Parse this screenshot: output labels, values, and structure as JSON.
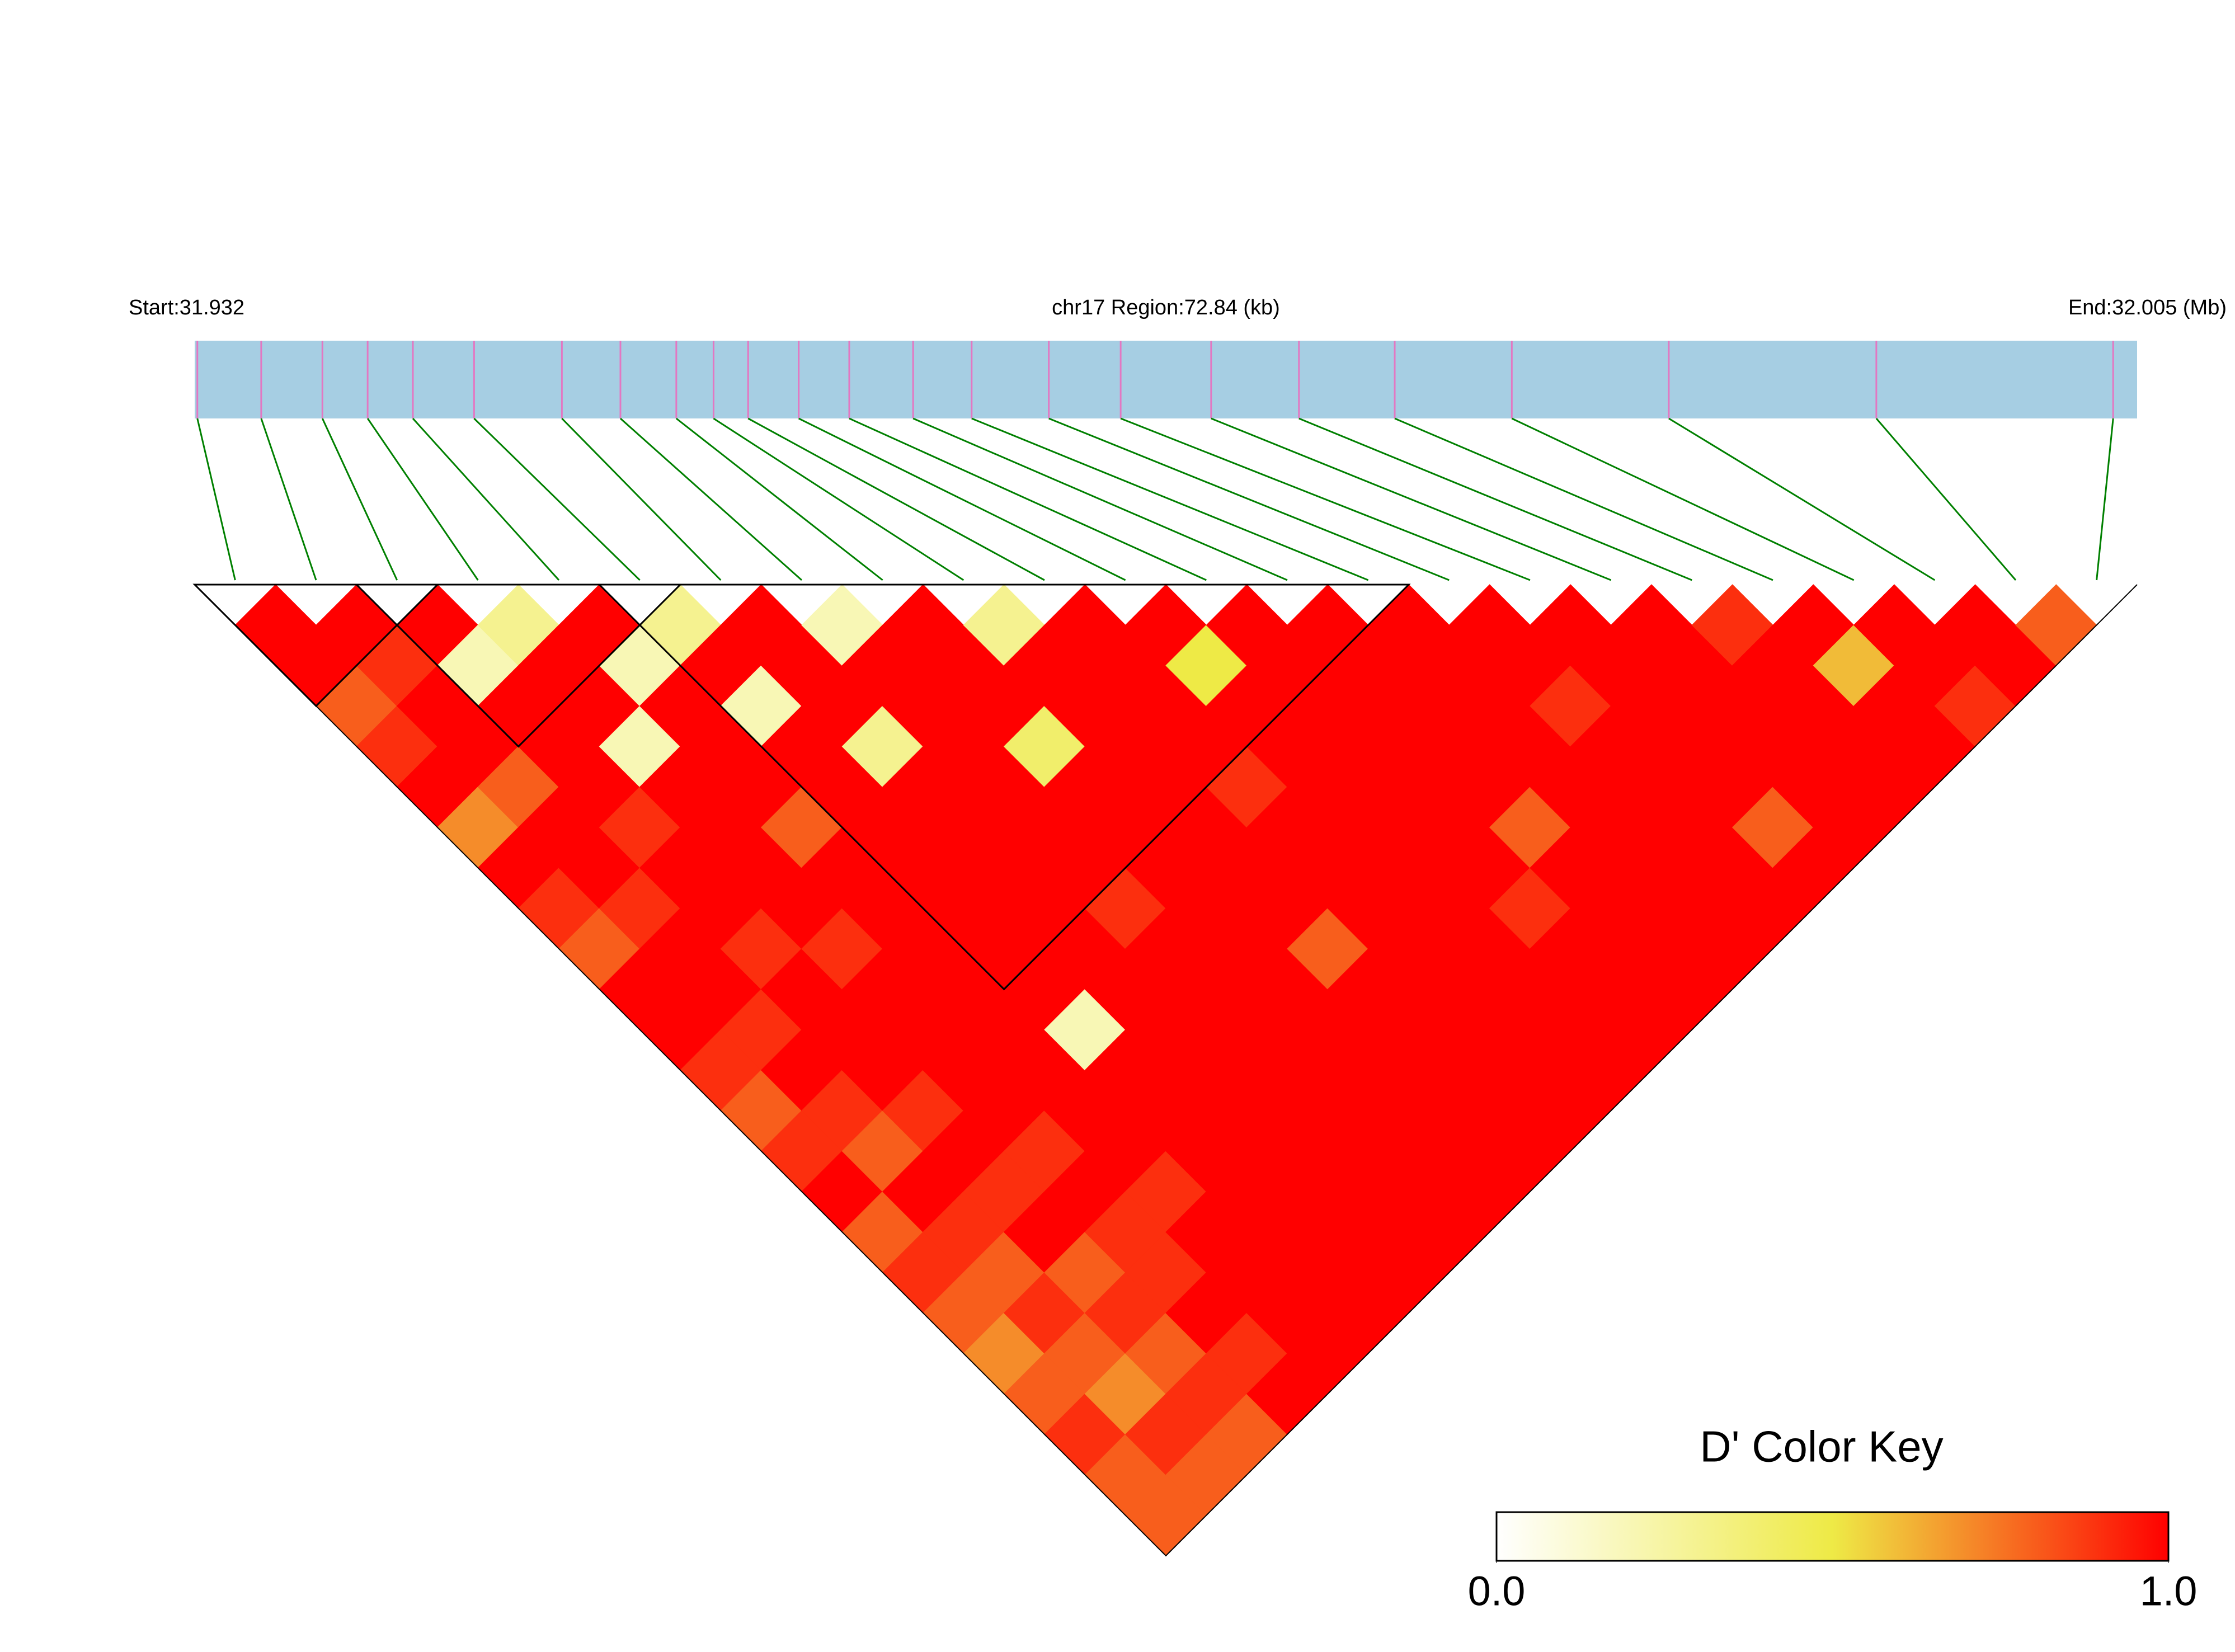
{
  "chart_data": {
    "type": "ld_heatmap",
    "header_left": "Start:31.932",
    "header_center": "chr17 Region:72.84 (kb)",
    "header_right": "End:32.005 (Mb)",
    "xlim": [
      31.932,
      32.005
    ],
    "positions": [
      31.9321,
      31.9345,
      31.9368,
      31.9385,
      31.9402,
      31.9425,
      31.9458,
      31.948,
      31.9501,
      31.9515,
      31.9528,
      31.9547,
      31.9566,
      31.959,
      31.9612,
      31.9641,
      31.9668,
      31.9702,
      31.9735,
      31.9771,
      31.9815,
      31.9874,
      31.9952,
      32.0041
    ],
    "dprime": [
      [
        1,
        1,
        0.8,
        0.9,
        1,
        0.7,
        1,
        0.9,
        0.8,
        1,
        1,
        0.9,
        0.8,
        0.9,
        1,
        0.8,
        0.9,
        0.8,
        0.7,
        0.8,
        0.9,
        0.8,
        0.8
      ],
      [
        1,
        0.9,
        1,
        1,
        0.8,
        1,
        1,
        0.9,
        1,
        1,
        0.9,
        1,
        0.9,
        0.8,
        1,
        0.9,
        0.8,
        0.9,
        0.8,
        0.7,
        0.9,
        0.8
      ],
      [
        1,
        0.2,
        1,
        1,
        1,
        0.9,
        1,
        1,
        0.9,
        1,
        1,
        1,
        0.9,
        1,
        0.9,
        1,
        0.8,
        0.9,
        0.8,
        0.9,
        0.8
      ],
      [
        0.3,
        1,
        1,
        0.2,
        1,
        1,
        1,
        1,
        0.9,
        1,
        1,
        1,
        1,
        0.9,
        1,
        0.9,
        0.9,
        1,
        0.9,
        1
      ],
      [
        1,
        0.2,
        1,
        1,
        1,
        0.8,
        1,
        1,
        1,
        1,
        1,
        1,
        1,
        1,
        0.9,
        1,
        1,
        1,
        1
      ],
      [
        0.3,
        1,
        0.2,
        1,
        1,
        1,
        1,
        1,
        1,
        1,
        0.2,
        1,
        1,
        1,
        1,
        1,
        1,
        1
      ],
      [
        1,
        1,
        1,
        0.3,
        1,
        1,
        1,
        1,
        1,
        1,
        1,
        1,
        1,
        1,
        1,
        1,
        1
      ],
      [
        0.2,
        1,
        1,
        1,
        1,
        1,
        1,
        0.9,
        1,
        1,
        1,
        1,
        1,
        1,
        1,
        1
      ],
      [
        1,
        1,
        1,
        0.4,
        1,
        1,
        1,
        1,
        1,
        1,
        1,
        1,
        1,
        1,
        1
      ],
      [
        0.3,
        1,
        1,
        1,
        1,
        1,
        1,
        1,
        0.8,
        1,
        1,
        1,
        1,
        1
      ],
      [
        1,
        1,
        1,
        1,
        0.9,
        1,
        1,
        1,
        1,
        1,
        1,
        1,
        1
      ],
      [
        1,
        0.5,
        1,
        1,
        1,
        1,
        1,
        1,
        1,
        1,
        1,
        1
      ],
      [
        1,
        1,
        1,
        1,
        1,
        1,
        1,
        0.9,
        1,
        1,
        1
      ],
      [
        1,
        1,
        1,
        1,
        1,
        0.8,
        1,
        1,
        1,
        1
      ],
      [
        1,
        1,
        1,
        1,
        1,
        1,
        1,
        1,
        1
      ],
      [
        1,
        1,
        0.9,
        1,
        1,
        1,
        1,
        1
      ],
      [
        1,
        1,
        1,
        1,
        1,
        0.8,
        1
      ],
      [
        1,
        1,
        1,
        1,
        1,
        1
      ],
      [
        0.9,
        1,
        1,
        1,
        1
      ],
      [
        1,
        0.6,
        1,
        1
      ],
      [
        1,
        1,
        0.9
      ],
      [
        1,
        1
      ],
      [
        0.8
      ]
    ],
    "blocks": [
      [
        0,
        2
      ],
      [
        2,
        5
      ],
      [
        5,
        14
      ]
    ],
    "color_scale": [
      "#ffffff",
      "#eeea46",
      "#ff0000"
    ],
    "track_color": "#a6cee3",
    "snp_color": "#e377c2",
    "link_color": "#008000",
    "legend_title": "D' Color Key",
    "legend_ticks": [
      {
        "value": 0,
        "label": "0.0"
      },
      {
        "value": 1,
        "label": "1.0"
      }
    ]
  }
}
